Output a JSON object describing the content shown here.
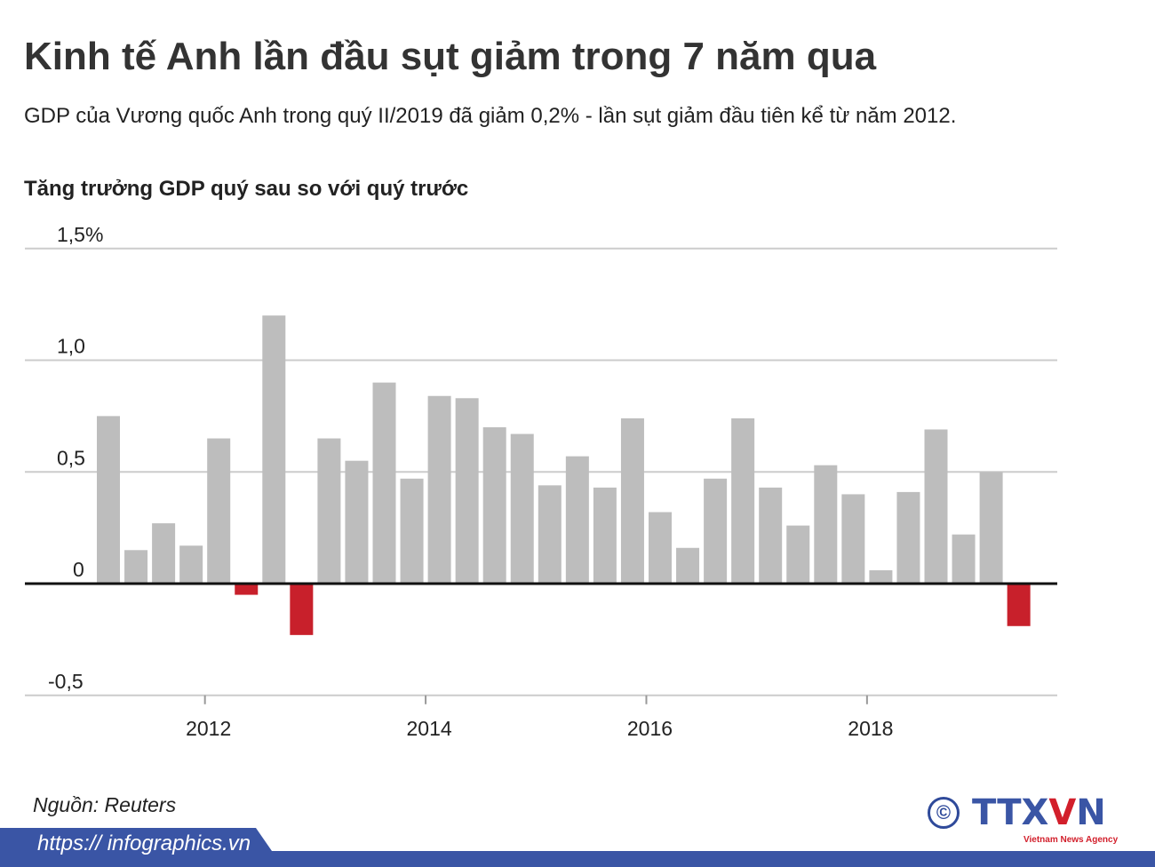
{
  "header": {
    "title": "Kinh tế Anh lần đầu sụt giảm trong 7 năm qua",
    "subtitle": "GDP của Vương quốc Anh trong quý II/2019 đã giảm 0,2% - lần sụt giảm đầu tiên kể từ năm 2012."
  },
  "chart_data": {
    "type": "bar",
    "title": "Tăng trưởng GDP quý sau so với quý trước",
    "xlabel": "",
    "ylabel": "",
    "ylim": [
      -0.5,
      1.5
    ],
    "y_ticks": [
      {
        "value": 1.5,
        "label": "1,5%"
      },
      {
        "value": 1.0,
        "label": "1,0"
      },
      {
        "value": 0.5,
        "label": "0,5"
      },
      {
        "value": 0,
        "label": "0"
      },
      {
        "value": -0.5,
        "label": "-0,5"
      }
    ],
    "x_ticks": [
      "2012",
      "2014",
      "2016",
      "2018"
    ],
    "categories": [
      "2011Q1",
      "2011Q2",
      "2011Q3",
      "2011Q4",
      "2012Q1",
      "2012Q2",
      "2012Q3",
      "2012Q4",
      "2013Q1",
      "2013Q2",
      "2013Q3",
      "2013Q4",
      "2014Q1",
      "2014Q2",
      "2014Q3",
      "2014Q4",
      "2015Q1",
      "2015Q2",
      "2015Q3",
      "2015Q4",
      "2016Q1",
      "2016Q2",
      "2016Q3",
      "2016Q4",
      "2017Q1",
      "2017Q2",
      "2017Q3",
      "2017Q4",
      "2018Q1",
      "2018Q2",
      "2018Q3",
      "2018Q4",
      "2019Q1",
      "2019Q2"
    ],
    "values": [
      0.75,
      0.15,
      0.27,
      0.17,
      0.65,
      -0.05,
      1.2,
      -0.23,
      0.65,
      0.55,
      0.9,
      0.47,
      0.84,
      0.83,
      0.7,
      0.67,
      0.44,
      0.57,
      0.43,
      0.74,
      0.32,
      0.16,
      0.47,
      0.74,
      0.43,
      0.26,
      0.53,
      0.4,
      0.06,
      0.41,
      0.69,
      0.22,
      0.5,
      -0.19
    ],
    "grid": true,
    "colors": {
      "positive": "#bdbdbd",
      "negative": "#c8202b",
      "baseline": "#111111",
      "grid": "#cccccc"
    }
  },
  "footer": {
    "source": "Nguồn: Reuters",
    "url": "https:// infographics.vn",
    "logo_text": "TTXVN",
    "logo_tagline": "Vietnam News Agency",
    "copyright_symbol": "©",
    "brand_color": "#3a55a5"
  }
}
